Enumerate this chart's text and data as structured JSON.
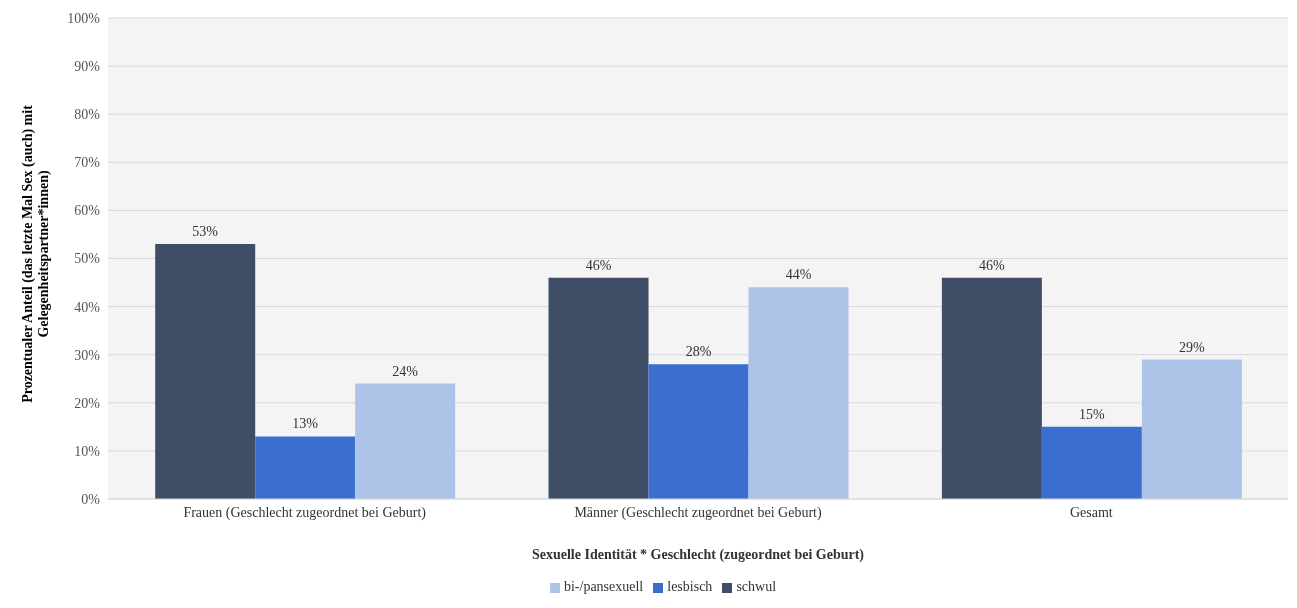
{
  "chart_data": {
    "type": "bar",
    "xlabel": "Sexuelle Identität * Geschlecht (zugeordnet bei Geburt)",
    "ylabel": "Prozentualer Anteil (das letzte Mal Sex (auch) mit Gelegenheitspartner*innen)",
    "categories": [
      "Frauen (Geschlecht zugeordnet bei Geburt)",
      "Männer (Geschlecht zugeordnet bei Geburt)",
      "Gesamt"
    ],
    "series": [
      {
        "name": "schwul",
        "color": "#3f4d66",
        "values": [
          53,
          46,
          46
        ],
        "value_labels": [
          "53%",
          "46%",
          "46%"
        ]
      },
      {
        "name": "lesbisch",
        "color": "#3a6fd0",
        "values": [
          13,
          28,
          15
        ],
        "value_labels": [
          "13%",
          "28%",
          "15%"
        ]
      },
      {
        "name": "bi-/pansexuell",
        "color": "#aec3e8",
        "values": [
          24,
          44,
          29
        ],
        "value_labels": [
          "24%",
          "44%",
          "29%"
        ]
      }
    ],
    "ylim": [
      0,
      100
    ],
    "yticks": [
      {
        "value": 0,
        "label": "0%"
      },
      {
        "value": 10,
        "label": "10%"
      },
      {
        "value": 20,
        "label": "20%"
      },
      {
        "value": 30,
        "label": "30%"
      },
      {
        "value": 40,
        "label": "40%"
      },
      {
        "value": 50,
        "label": "50%"
      },
      {
        "value": 60,
        "label": "60%"
      },
      {
        "value": 70,
        "label": "70%"
      },
      {
        "value": 80,
        "label": "80%"
      },
      {
        "value": 90,
        "label": "90%"
      },
      {
        "value": 100,
        "label": "100%"
      }
    ],
    "grid": "y",
    "legend": "bottom"
  }
}
